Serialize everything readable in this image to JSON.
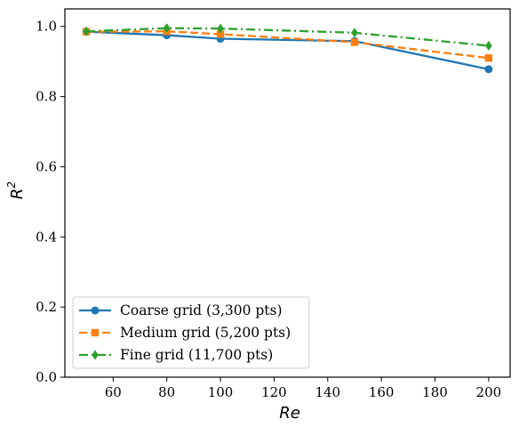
{
  "chart_data": {
    "type": "line",
    "title": "",
    "xlabel": "Re",
    "ylabel": "R²",
    "ylabel_base": "R",
    "ylabel_sup": "2",
    "x": [
      50,
      80,
      100,
      150,
      200
    ],
    "xlim": [
      42,
      208
    ],
    "ylim": [
      0.0,
      1.05
    ],
    "xticks": [
      60,
      80,
      100,
      120,
      140,
      160,
      180,
      200
    ],
    "yticks": [
      0.0,
      0.2,
      0.4,
      0.6,
      0.8,
      1.0
    ],
    "xtick_labels": [
      "60",
      "80",
      "100",
      "120",
      "140",
      "160",
      "180",
      "200"
    ],
    "ytick_labels": [
      "0.0",
      "0.2",
      "0.4",
      "0.6",
      "0.8",
      "1.0"
    ],
    "grid": false,
    "legend_position": "lower-left",
    "series": [
      {
        "name": "Coarse grid (3,300 pts)",
        "values": [
          0.985,
          0.975,
          0.965,
          0.958,
          0.878
        ],
        "color": "#1f77b4",
        "marker": "circle",
        "linestyle": "solid"
      },
      {
        "name": "Medium grid (5,200 pts)",
        "values": [
          0.985,
          0.986,
          0.978,
          0.955,
          0.91
        ],
        "color": "#ff7f0e",
        "marker": "square",
        "linestyle": "dashed"
      },
      {
        "name": "Fine grid (11,700 pts)",
        "values": [
          0.986,
          0.995,
          0.994,
          0.982,
          0.945
        ],
        "color": "#2ca02c",
        "marker": "diamond",
        "linestyle": "dashdot"
      }
    ]
  }
}
